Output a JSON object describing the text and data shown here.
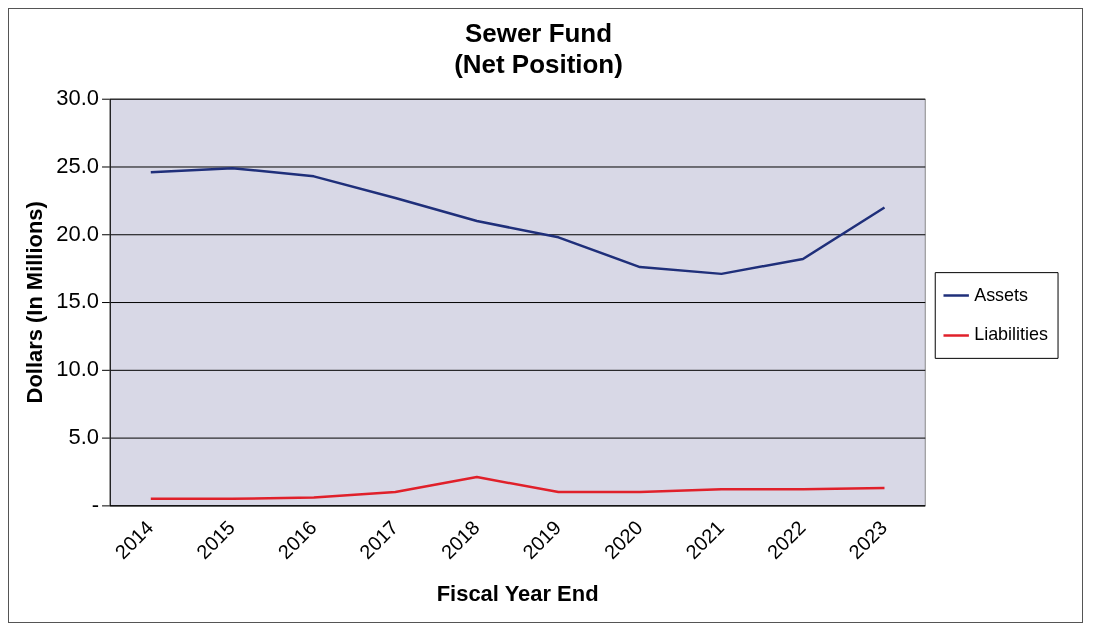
{
  "chart_data": {
    "type": "line",
    "title": "Sewer Fund",
    "subtitle": "(Net Position)",
    "xlabel": "Fiscal Year End",
    "ylabel": "Dollars (In Millions)",
    "categories": [
      "2014",
      "2015",
      "2016",
      "2017",
      "2018",
      "2019",
      "2020",
      "2021",
      "2022",
      "2023"
    ],
    "series": [
      {
        "name": "Assets",
        "color": "#1f2f7a",
        "values": [
          24.6,
          24.9,
          24.3,
          22.7,
          21.0,
          19.8,
          17.6,
          17.1,
          18.2,
          22.0
        ]
      },
      {
        "name": "Liabilities",
        "color": "#e0202a",
        "values": [
          0.5,
          0.5,
          0.6,
          1.0,
          2.1,
          1.0,
          1.0,
          1.2,
          1.2,
          1.3
        ]
      }
    ],
    "ylim": [
      0,
      30
    ],
    "yticks": [
      {
        "value": 0,
        "label": "-"
      },
      {
        "value": 5,
        "label": "5.0"
      },
      {
        "value": 10,
        "label": "10.0"
      },
      {
        "value": 15,
        "label": "15.0"
      },
      {
        "value": 20,
        "label": "20.0"
      },
      {
        "value": 25,
        "label": "25.0"
      },
      {
        "value": 30,
        "label": "30.0"
      }
    ],
    "grid": "y",
    "legend": "right",
    "marker": "none",
    "line_style": "solid"
  }
}
